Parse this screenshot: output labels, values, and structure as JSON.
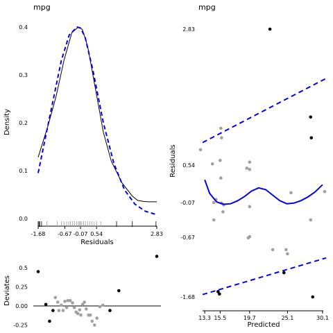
{
  "chart_data": [
    {
      "type": "line",
      "panel": "density",
      "title": "mpg",
      "xlabel": "Residuals",
      "ylabel": "Density",
      "xlim": [
        -1.68,
        2.83
      ],
      "ylim": [
        0,
        0.4
      ],
      "yticks": [
        "0.0",
        "0.1",
        "0.2",
        "0.3",
        "0.4"
      ],
      "xticks": [
        "-1.68",
        "-0.67",
        "-0.07",
        "0.54",
        "2.83"
      ],
      "xtick_values": [
        -1.68,
        -0.67,
        -0.07,
        0.54,
        2.83
      ],
      "grid": false,
      "series": [
        {
          "style": "solid",
          "color": "#000000",
          "x": [
            -1.68,
            -1.3,
            -1.0,
            -0.7,
            -0.4,
            -0.15,
            0.0,
            0.2,
            0.5,
            0.8,
            1.1,
            1.5,
            1.9,
            2.1,
            2.3,
            2.5,
            2.83
          ],
          "y": [
            0.128,
            0.195,
            0.255,
            0.33,
            0.388,
            0.4,
            0.395,
            0.36,
            0.27,
            0.18,
            0.12,
            0.075,
            0.047,
            0.038,
            0.036,
            0.035,
            0.035
          ]
        },
        {
          "style": "dashed",
          "color": "#0000ee",
          "x": [
            -1.68,
            -1.4,
            -1.1,
            -0.8,
            -0.5,
            -0.2,
            -0.07,
            0.1,
            0.4,
            0.8,
            1.2,
            1.6,
            2.0,
            2.4,
            2.83
          ],
          "y": [
            0.095,
            0.17,
            0.25,
            0.33,
            0.383,
            0.4,
            0.398,
            0.38,
            0.31,
            0.2,
            0.115,
            0.06,
            0.03,
            0.015,
            0.008
          ]
        }
      ],
      "rug": [
        -1.68,
        -1.65,
        -1.62,
        -1.55,
        -1.35,
        -0.95,
        -0.8,
        -0.7,
        -0.6,
        -0.52,
        -0.45,
        -0.38,
        -0.3,
        -0.22,
        -0.15,
        -0.1,
        -0.07,
        -0.02,
        0.05,
        0.12,
        0.2,
        0.28,
        0.36,
        0.45,
        0.54,
        0.7,
        1.3,
        1.9,
        2.8
      ]
    },
    {
      "type": "scatter",
      "panel": "deviates",
      "ylabel": "Deviates",
      "ylim": [
        -0.25,
        0.65
      ],
      "yticks": [
        "0.5",
        "0.25",
        "0.00",
        "-0.25"
      ],
      "ytick_values": [
        0.5,
        0.25,
        0.0,
        -0.25
      ],
      "grid": false,
      "points_black": [
        {
          "x": 0.0,
          "y": 0.45
        },
        {
          "x": 0.065,
          "y": 0.02
        },
        {
          "x": 0.096,
          "y": -0.2
        },
        {
          "x": 0.125,
          "y": -0.06
        },
        {
          "x": 0.605,
          "y": -0.06
        },
        {
          "x": 0.68,
          "y": 0.2
        },
        {
          "x": 1.0,
          "y": 0.65
        }
      ],
      "points_gray": [
        {
          "x": 0.145,
          "y": 0.11
        },
        {
          "x": 0.165,
          "y": 0.05
        },
        {
          "x": 0.175,
          "y": -0.06
        },
        {
          "x": 0.195,
          "y": 0.01
        },
        {
          "x": 0.21,
          "y": -0.06
        },
        {
          "x": 0.225,
          "y": 0.06
        },
        {
          "x": 0.24,
          "y": -0.02
        },
        {
          "x": 0.25,
          "y": 0.07
        },
        {
          "x": 0.27,
          "y": 0.07
        },
        {
          "x": 0.29,
          "y": 0.04
        },
        {
          "x": 0.305,
          "y": -0.02
        },
        {
          "x": 0.32,
          "y": -0.08
        },
        {
          "x": 0.335,
          "y": -0.1
        },
        {
          "x": 0.35,
          "y": -0.05
        },
        {
          "x": 0.36,
          "y": -0.12
        },
        {
          "x": 0.375,
          "y": 0.02
        },
        {
          "x": 0.39,
          "y": 0.05
        },
        {
          "x": 0.405,
          "y": -0.04
        },
        {
          "x": 0.425,
          "y": -0.12
        },
        {
          "x": 0.44,
          "y": -0.12
        },
        {
          "x": 0.455,
          "y": -0.2
        },
        {
          "x": 0.475,
          "y": -0.25
        },
        {
          "x": 0.495,
          "y": -0.16
        },
        {
          "x": 0.52,
          "y": -0.01
        },
        {
          "x": 0.545,
          "y": 0.01
        }
      ]
    },
    {
      "type": "scatter",
      "panel": "residuals",
      "title": "mpg",
      "xlabel": "Predicted",
      "ylabel": "Residuals",
      "xlim": [
        12.4,
        30.6
      ],
      "ylim": [
        -1.68,
        2.83
      ],
      "xticks": [
        "13.3",
        "15.5",
        "19.7",
        "25.1",
        "30.1"
      ],
      "xtick_values": [
        13.3,
        15.5,
        19.7,
        25.1,
        30.1
      ],
      "yticks": [
        "2.83",
        "0.54",
        "-0.07",
        "-0.67",
        "-1.68"
      ],
      "ytick_values": [
        2.83,
        0.54,
        -0.07,
        -0.67,
        -1.68
      ],
      "grid": false,
      "points_black": [
        {
          "x": 22.6,
          "y": 2.83
        },
        {
          "x": 28.4,
          "y": 1.35
        },
        {
          "x": 28.7,
          "y": -1.68
        },
        {
          "x": 15.2,
          "y": -1.59
        },
        {
          "x": 15.4,
          "y": -1.63
        },
        {
          "x": 24.6,
          "y": -1.27
        },
        {
          "x": 28.5,
          "y": 1.0
        }
      ],
      "points_gray": [
        {
          "x": 12.7,
          "y": 0.8
        },
        {
          "x": 14.4,
          "y": 0.56
        },
        {
          "x": 15.6,
          "y": 1.16
        },
        {
          "x": 15.7,
          "y": 1.0
        },
        {
          "x": 15.5,
          "y": 0.62
        },
        {
          "x": 15.6,
          "y": 0.33
        },
        {
          "x": 14.6,
          "y": -0.07
        },
        {
          "x": 14.9,
          "y": -0.02
        },
        {
          "x": 15.7,
          "y": -0.08
        },
        {
          "x": 16.0,
          "y": -0.11
        },
        {
          "x": 15.9,
          "y": -0.23
        },
        {
          "x": 14.6,
          "y": -0.37
        },
        {
          "x": 19.3,
          "y": 0.49
        },
        {
          "x": 19.7,
          "y": 0.59
        },
        {
          "x": 19.7,
          "y": 0.47
        },
        {
          "x": 19.7,
          "y": -0.14
        },
        {
          "x": 19.7,
          "y": -0.66
        },
        {
          "x": 19.5,
          "y": -0.68
        },
        {
          "x": 23.0,
          "y": -0.88
        },
        {
          "x": 24.9,
          "y": -0.88
        },
        {
          "x": 25.1,
          "y": -0.95
        },
        {
          "x": 25.6,
          "y": 0.09
        },
        {
          "x": 28.4,
          "y": -0.37
        },
        {
          "x": 30.4,
          "y": 0.11
        }
      ],
      "smooth": {
        "x": [
          13.3,
          14.0,
          15.0,
          16.0,
          17.0,
          18.0,
          19.0,
          20.0,
          21.0,
          22.0,
          23.0,
          24.0,
          25.0,
          26.0,
          27.0,
          28.0,
          29.0,
          30.1
        ],
        "y": [
          0.3,
          0.08,
          -0.06,
          -0.1,
          -0.09,
          -0.04,
          0.03,
          0.12,
          0.17,
          0.14,
          0.05,
          -0.04,
          -0.09,
          -0.08,
          -0.04,
          0.02,
          0.1,
          0.22
        ]
      },
      "band_upper": {
        "x": [
          13.0,
          30.6
        ],
        "y": [
          0.92,
          2.0
        ]
      },
      "band_lower": {
        "x": [
          13.0,
          30.6
        ],
        "y": [
          -1.64,
          -1.02
        ]
      }
    }
  ],
  "colors": {
    "density": "#000000",
    "normal_ref": "#0000ee",
    "points_black": "#000000",
    "points_gray": "#a0a0a0",
    "smooth": "#0000ee"
  }
}
